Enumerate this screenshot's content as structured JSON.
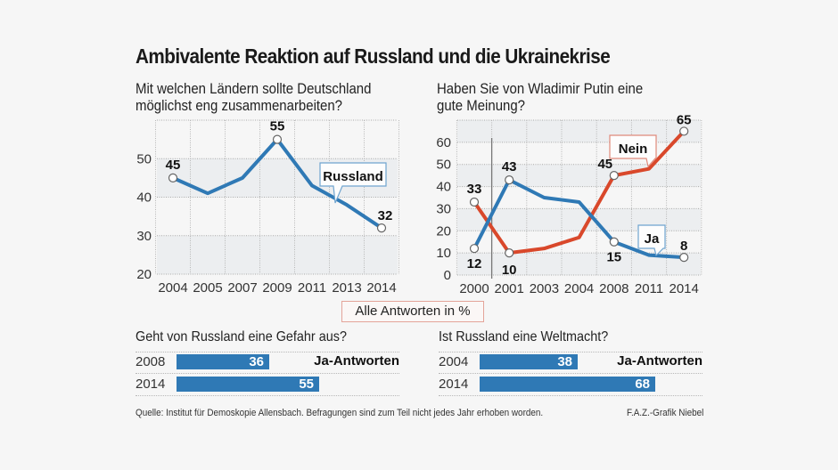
{
  "title": "Ambivalente Reaktion auf Russland und die Ukrainekrise",
  "note": "Alle Antworten in %",
  "source": "Quelle: Institut für Demoskopie Allensbach. Befragungen sind zum Teil  nicht jedes Jahr erhoben worden.",
  "credit": "F.A.Z.-Grafik Niebel",
  "colors": {
    "blue": "#2f79b5",
    "red": "#d9482b",
    "background": "#f6f6f6"
  },
  "chart_data": [
    {
      "type": "line",
      "title": "Mit welchen Ländern sollte Deutschland möglichst eng zusammenarbeiten?",
      "title_lines": [
        "Mit welchen Ländern sollte Deutschland",
        "möglichst eng zusammenarbeiten?"
      ],
      "categories": [
        "2004",
        "2005",
        "2007",
        "2009",
        "2011",
        "2013",
        "2014"
      ],
      "series": [
        {
          "name": "Russland",
          "color": "#2f79b5",
          "values": [
            45,
            41,
            45,
            55,
            43,
            38,
            32
          ],
          "labeled": {
            "0": "45",
            "3": "55",
            "6": "32"
          }
        }
      ],
      "yticks": [
        "20",
        "30",
        "40",
        "50"
      ],
      "ylim": [
        20,
        60
      ],
      "xlabel": "",
      "ylabel": "",
      "grid": true,
      "legend": "callout"
    },
    {
      "type": "line",
      "title": "Haben Sie von Wladimir Putin eine gute Meinung?",
      "title_lines": [
        "Haben Sie von Wladimir Putin eine",
        "gute Meinung?"
      ],
      "categories": [
        "2000",
        "2001",
        "2003",
        "2004",
        "2008",
        "2011",
        "2014"
      ],
      "series": [
        {
          "name": "Ja",
          "color": "#2f79b5",
          "values": [
            12,
            43,
            35,
            33,
            15,
            9,
            8
          ],
          "labeled": {
            "0": "12",
            "1": "43",
            "4": "15",
            "6": "8"
          }
        },
        {
          "name": "Nein",
          "color": "#d9482b",
          "values": [
            33,
            10,
            12,
            17,
            45,
            48,
            65
          ],
          "labeled": {
            "0": "33",
            "1": "10",
            "4": "45",
            "6": "65"
          }
        }
      ],
      "yticks": [
        "0",
        "10",
        "20",
        "30",
        "40",
        "50",
        "60"
      ],
      "ylim": [
        0,
        70
      ],
      "xlabel": "",
      "ylabel": "",
      "grid": true,
      "legend": "callout"
    },
    {
      "type": "bar",
      "title": "Geht von Russland eine Gefahr aus?",
      "categories": [
        "2008",
        "2014"
      ],
      "values": [
        36,
        55
      ],
      "series_label": "Ja-Antworten",
      "xlim": [
        0,
        100
      ]
    },
    {
      "type": "bar",
      "title": "Ist Russland eine Weltmacht?",
      "categories": [
        "2004",
        "2014"
      ],
      "values": [
        38,
        68
      ],
      "series_label": "Ja-Antworten",
      "xlim": [
        0,
        100
      ]
    }
  ]
}
